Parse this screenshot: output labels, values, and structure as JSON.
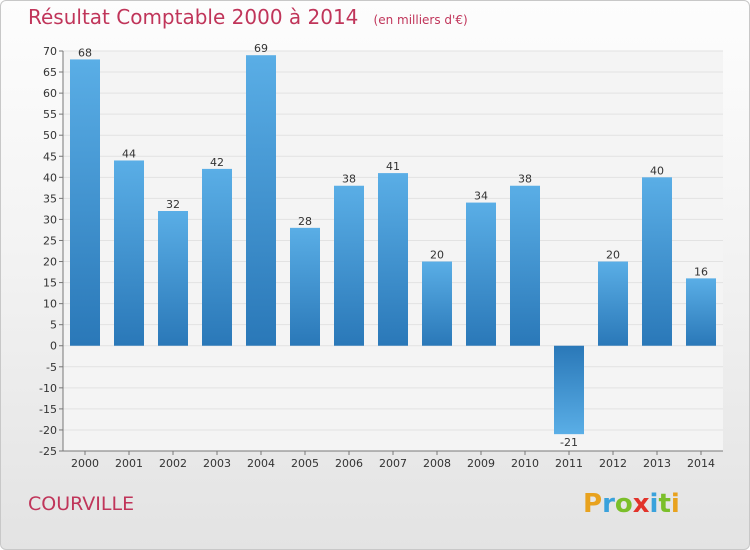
{
  "header": {
    "title": "Résultat Comptable 2000 à 2014",
    "unit": "(en milliers d'€)"
  },
  "footer": {
    "commune": "COURVILLE",
    "logo_text": "Proxiti",
    "logo_letters": [
      {
        "char": "P",
        "color": "#e8a21e"
      },
      {
        "char": "r",
        "color": "#3aa2dc"
      },
      {
        "char": "o",
        "color": "#7bbf2a"
      },
      {
        "char": "x",
        "color": "#e2332b"
      },
      {
        "char": "i",
        "color": "#3aa2dc"
      },
      {
        "char": "t",
        "color": "#7bbf2a"
      },
      {
        "char": "i",
        "color": "#e8a21e"
      }
    ]
  },
  "colors": {
    "title": "#c0355a",
    "bar_light": "#5aaee6",
    "bar_dark": "#2a78b8",
    "grid": "#e2e2e2"
  },
  "chart_data": {
    "type": "bar",
    "title": "Résultat Comptable 2000 à 2014",
    "xlabel": "",
    "ylabel": "",
    "categories": [
      "2000",
      "2001",
      "2002",
      "2003",
      "2004",
      "2005",
      "2006",
      "2007",
      "2008",
      "2009",
      "2010",
      "2011",
      "2012",
      "2013",
      "2014"
    ],
    "values": [
      68,
      44,
      32,
      42,
      69,
      28,
      38,
      41,
      20,
      34,
      38,
      -21,
      20,
      40,
      16
    ],
    "ylim": [
      -25,
      70
    ],
    "yticks": [
      70,
      65,
      60,
      55,
      50,
      45,
      40,
      35,
      30,
      25,
      20,
      15,
      10,
      5,
      0,
      -5,
      -10,
      -15,
      -20,
      -25
    ],
    "grid": true,
    "data_labels": true
  }
}
